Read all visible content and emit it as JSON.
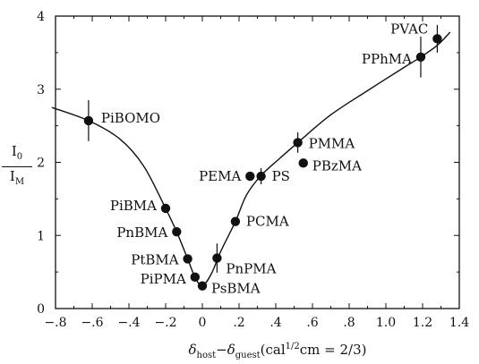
{
  "chart_data": {
    "type": "scatter",
    "title": "",
    "xlabel": "δhost − δguest (cal1/2cm = 2/3)",
    "xlabel_parts": {
      "d1": "δ",
      "s1": "host",
      "minus": "−",
      "d2": "δ",
      "s2": "guest",
      "open": "(cal",
      "sup": "1/2",
      "rest": "cm = 2/3)"
    },
    "ylabel": "I0/IM",
    "ylabel_parts": {
      "num": "I",
      "num_sub": "0",
      "den": "I",
      "den_sub": "M"
    },
    "xlim": [
      -0.8,
      1.4
    ],
    "ylim": [
      0,
      4
    ],
    "x_ticks": [
      -0.8,
      -0.6,
      -0.4,
      -0.2,
      0,
      0.2,
      0.4,
      0.6,
      0.8,
      1.0,
      1.2,
      1.4
    ],
    "x_tick_labels": [
      "−.8",
      "−.6",
      "−.4",
      "−.2",
      "0",
      ".2",
      ".4",
      ".6",
      ".8",
      "1.0",
      "1.2",
      "1.4"
    ],
    "y_ticks": [
      0,
      1,
      2,
      3,
      4
    ],
    "y_tick_labels": [
      "0",
      "1",
      "2",
      "3",
      "4"
    ],
    "points": [
      {
        "label": "PiBOMO",
        "x": -0.62,
        "y": 2.57,
        "err": 0.28
      },
      {
        "label": "PiBMA",
        "x": -0.2,
        "y": 1.37
      },
      {
        "label": "PnBMA",
        "x": -0.14,
        "y": 1.05
      },
      {
        "label": "PtBMA",
        "x": -0.08,
        "y": 0.68
      },
      {
        "label": "PiPMA",
        "x": -0.04,
        "y": 0.43
      },
      {
        "label": "PsBMA",
        "x": 0.0,
        "y": 0.31
      },
      {
        "label": "PnPMA",
        "x": 0.08,
        "y": 0.69,
        "err": 0.2
      },
      {
        "label": "PCMA",
        "x": 0.18,
        "y": 1.19
      },
      {
        "label": "PEMA",
        "x": 0.26,
        "y": 1.81
      },
      {
        "label": "PS",
        "x": 0.32,
        "y": 1.81,
        "err": 0.11
      },
      {
        "label": "PMMA",
        "x": 0.52,
        "y": 2.27,
        "err": 0.14
      },
      {
        "label": "PBzMA",
        "x": 0.55,
        "y": 1.99
      },
      {
        "label": "PPhMA",
        "x": 1.19,
        "y": 3.44,
        "err": 0.28
      },
      {
        "label": "PVAC",
        "x": 1.28,
        "y": 3.69,
        "err": 0.19
      }
    ],
    "curve": [
      [
        -0.82,
        2.75
      ],
      [
        -0.62,
        2.57
      ],
      [
        -0.45,
        2.32
      ],
      [
        -0.32,
        1.95
      ],
      [
        -0.2,
        1.37
      ],
      [
        -0.14,
        1.05
      ],
      [
        -0.08,
        0.68
      ],
      [
        -0.04,
        0.43
      ],
      [
        0.0,
        0.31
      ],
      [
        0.05,
        0.48
      ],
      [
        0.1,
        0.78
      ],
      [
        0.18,
        1.19
      ],
      [
        0.24,
        1.55
      ],
      [
        0.32,
        1.82
      ],
      [
        0.42,
        2.05
      ],
      [
        0.52,
        2.27
      ],
      [
        0.7,
        2.65
      ],
      [
        0.9,
        2.98
      ],
      [
        1.1,
        3.3
      ],
      [
        1.19,
        3.44
      ],
      [
        1.28,
        3.6
      ],
      [
        1.35,
        3.78
      ]
    ],
    "grid": false,
    "legend": "none"
  }
}
